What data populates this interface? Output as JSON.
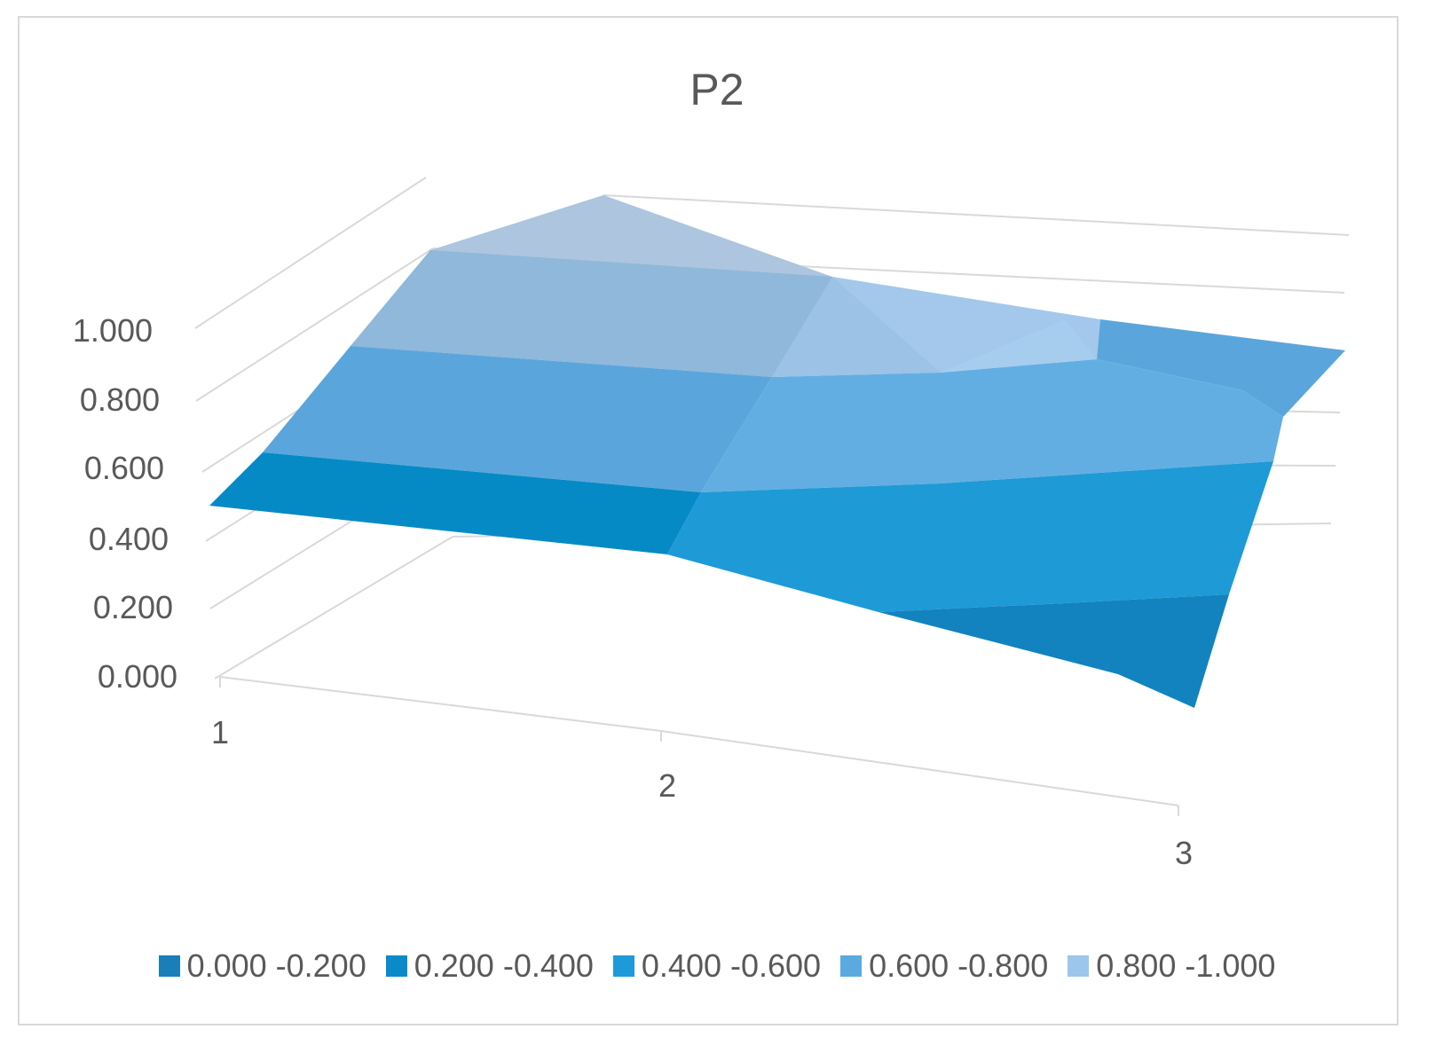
{
  "chart_data": {
    "type": "surface",
    "title": "P2",
    "z_ticks": [
      "0.000",
      "0.200",
      "0.400",
      "0.600",
      "0.800",
      "1.000"
    ],
    "x_categories": [
      "1",
      "2",
      "3"
    ],
    "zlim": [
      0,
      1
    ],
    "grid": true,
    "legend_position": "bottom",
    "legend": [
      {
        "label": "0.000 -0.200",
        "color": "#1a7fb8"
      },
      {
        "label": "0.200 -0.400",
        "color": "#0a8ac8"
      },
      {
        "label": "0.400 -0.600",
        "color": "#1e9ad8"
      },
      {
        "label": "0.600 -0.800",
        "color": "#5aaae0"
      },
      {
        "label": "0.800 -1.000",
        "color": "#9cc6ec"
      }
    ],
    "colors": {
      "band_0": "#1283be",
      "band_1": "#068ac6",
      "band_2": "#1e9ad6",
      "band_3": "#5aa6dc",
      "band_4": "#8fb8da",
      "band_5": "#adc5de",
      "grid": "#d9d9d9"
    }
  }
}
